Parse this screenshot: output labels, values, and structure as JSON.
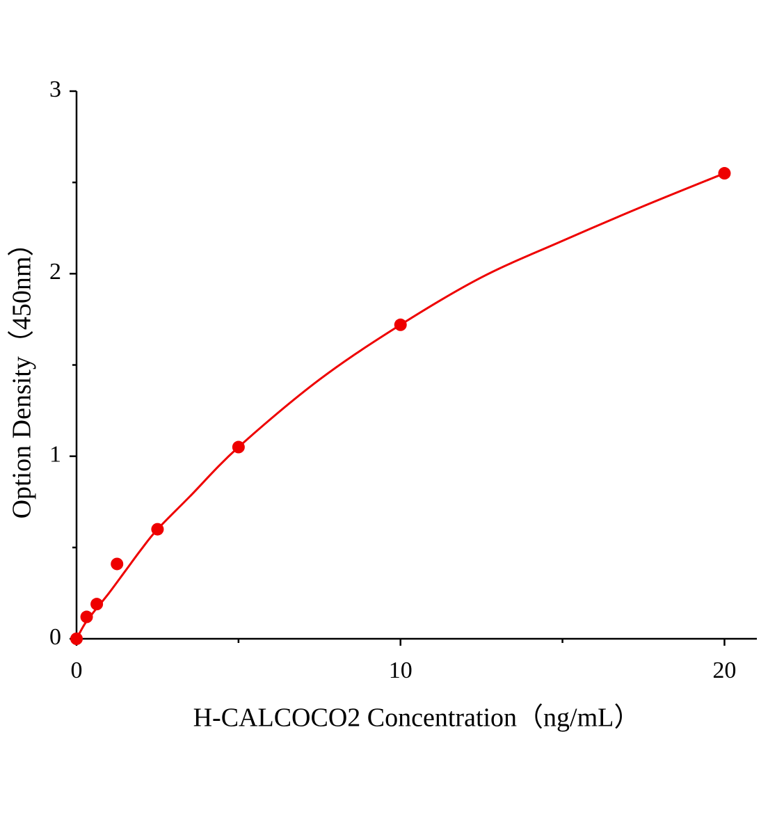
{
  "chart_data": {
    "type": "scatter",
    "x_label": "H-CALCOCO2 Concentration（ng/mL）",
    "y_label": "Option Density（450nm）",
    "x": [
      0,
      0.3125,
      0.625,
      1.25,
      2.5,
      5,
      10,
      20
    ],
    "values": [
      0,
      0.12,
      0.19,
      0.41,
      0.6,
      1.05,
      1.72,
      2.55
    ],
    "color": "#ee0000",
    "fit_curve": {
      "x": [
        0,
        0.25,
        0.5,
        1,
        1.5,
        2,
        2.5,
        3.5,
        5,
        7.5,
        10,
        12.5,
        15,
        17.5,
        20
      ],
      "values": [
        0,
        0.08,
        0.14,
        0.25,
        0.37,
        0.49,
        0.6,
        0.78,
        1.05,
        1.42,
        1.72,
        1.98,
        2.18,
        2.37,
        2.55
      ],
      "color": "#ee0000"
    },
    "xlim": [
      0,
      21
    ],
    "ylim": [
      0,
      3
    ],
    "xticks": [
      0,
      10,
      20
    ],
    "yticks": [
      0,
      1,
      2,
      3
    ],
    "xminor": [
      5,
      15
    ],
    "yminor": [
      0.5,
      1.5,
      2.5
    ]
  }
}
